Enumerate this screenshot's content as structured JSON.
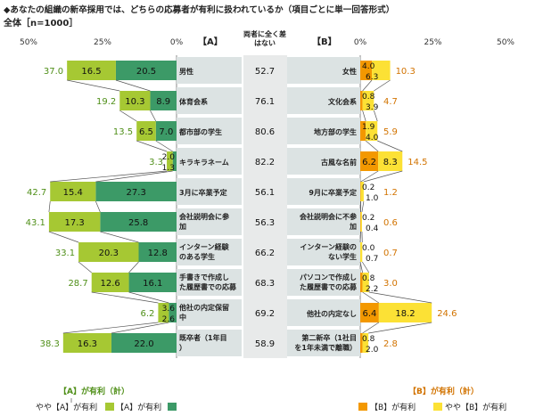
{
  "header": {
    "title": "◆あなたの組織の新卒採用では、どちらの応募者が有利に扱われているか（項目ごとに単一回答形式）",
    "subtitle": "全体［n=1000］"
  },
  "chart_data": {
    "type": "bar",
    "stacked": true,
    "orientation": "horizontal",
    "column_labels": {
      "left": "【A】",
      "middle": "両者に全く差はない",
      "right": "【B】"
    },
    "left_axis": {
      "ticks": [
        "50%",
        "25%",
        "0%"
      ],
      "range": [
        0,
        50
      ]
    },
    "right_axis": {
      "ticks": [
        "0%",
        "25%",
        "50%"
      ],
      "range": [
        0,
        50
      ]
    },
    "rows": [
      {
        "a": "男性",
        "a_total": "37.0",
        "a_yaya": "16.5",
        "a_full": "20.5",
        "neutral": "52.7",
        "b": "女性",
        "b_full": "4.0",
        "b_yaya": "6.3",
        "b_total": "10.3"
      },
      {
        "a": "体育会系",
        "a_total": "19.2",
        "a_yaya": "10.3",
        "a_full": "8.9",
        "neutral": "76.1",
        "b": "文化会系",
        "b_full": "0.8",
        "b_yaya": "3.9",
        "b_total": "4.7"
      },
      {
        "a": "都市部の学生",
        "a_total": "13.5",
        "a_yaya": "6.5",
        "a_full": "7.0",
        "neutral": "80.6",
        "b": "地方部の学生",
        "b_full": "1.9",
        "b_yaya": "4.0",
        "b_total": "5.9"
      },
      {
        "a": "キラキラネーム",
        "a_total": "3.3",
        "a_yaya": "2.0",
        "a_full": "1.3",
        "neutral": "82.2",
        "b": "古風な名前",
        "b_full": "6.2",
        "b_yaya": "8.3",
        "b_total": "14.5"
      },
      {
        "a": "3月に卒業予定",
        "a_total": "42.7",
        "a_yaya": "15.4",
        "a_full": "27.3",
        "neutral": "56.1",
        "b": "9月に卒業予定",
        "b_full": "0.2",
        "b_yaya": "1.0",
        "b_total": "1.2"
      },
      {
        "a": "会社説明会に参加",
        "a_total": "43.1",
        "a_yaya": "17.3",
        "a_full": "25.8",
        "neutral": "56.3",
        "b": "会社説明会に不参加",
        "b_full": "0.2",
        "b_yaya": "0.4",
        "b_total": "0.6"
      },
      {
        "a": "インターン経験のある学生",
        "a_total": "33.1",
        "a_yaya": "20.3",
        "a_full": "12.8",
        "neutral": "66.2",
        "b": "インターン経験のない学生",
        "b_full": "0.0",
        "b_yaya": "0.7",
        "b_total": "0.7"
      },
      {
        "a": "手書きで作成した履歴書での応募",
        "a_total": "28.7",
        "a_yaya": "12.6",
        "a_full": "16.1",
        "neutral": "68.3",
        "b": "パソコンで作成した履歴書での応募",
        "b_full": "0.8",
        "b_yaya": "2.2",
        "b_total": "3.0"
      },
      {
        "a": "他社の内定保留中",
        "a_total": "6.2",
        "a_yaya": "3.6",
        "a_full": "2.6",
        "neutral": "69.2",
        "b": "他社の内定なし",
        "b_full": "6.4",
        "b_yaya": "18.2",
        "b_total": "24.6"
      },
      {
        "a": "既卒者（1年目）",
        "a_total": "38.3",
        "a_yaya": "16.3",
        "a_full": "22.0",
        "neutral": "58.9",
        "b": "第二新卒（1社目を1年未満で離職）",
        "b_full": "0.8",
        "b_yaya": "2.0",
        "b_total": "2.8"
      }
    ],
    "legend": {
      "a_group": "【A】が有利（計）",
      "a_yaya": "やや【A】が有利",
      "a_full": "【A】が有利",
      "b_group": "【B】が有利（計）",
      "b_full": "【B】が有利",
      "b_yaya": "やや【B】が有利"
    },
    "colors": {
      "a_yaya": "#a6c833",
      "a_full": "#3c9a67",
      "b_full": "#f39800",
      "b_yaya": "#fce135",
      "a_text": "#4f8f18",
      "b_text": "#d27300",
      "label_bg": "#dce3e3",
      "middle_bg": "#e8eaea"
    }
  }
}
